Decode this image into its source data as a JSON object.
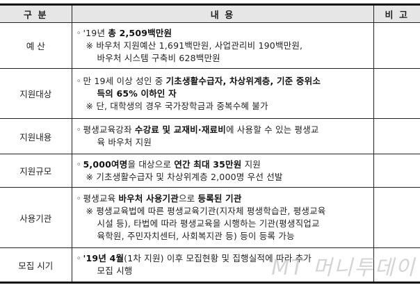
{
  "header": {
    "category": "구 분",
    "content": "내 용",
    "remark": "비 고"
  },
  "rows": [
    {
      "category": "예 산",
      "lines": [
        {
          "indent": 0,
          "bullet": "◦",
          "segs": [
            {
              "t": "'19년 ",
              "b": false
            },
            {
              "t": "총 2,509백만원",
              "b": true
            }
          ]
        },
        {
          "indent": 1,
          "segs": [
            {
              "t": "※ 바우처 지원예산 1,691백만원, 사업관리비 190백만원,",
              "b": false
            }
          ]
        },
        {
          "indent": 2,
          "segs": [
            {
              "t": "바우처 시스템 구축비 628백만원",
              "b": false
            }
          ]
        }
      ],
      "remark": ""
    },
    {
      "category": "지원대상",
      "lines": [
        {
          "indent": 0,
          "bullet": "◦",
          "segs": [
            {
              "t": "만 19세 이상 성인 중 ",
              "b": false
            },
            {
              "t": "기초생활수급자, 차상위계층, 기준 중위소",
              "b": true
            }
          ]
        },
        {
          "indent": 2,
          "segs": [
            {
              "t": "득의 65% 이하인 자",
              "b": true
            }
          ]
        },
        {
          "indent": 1,
          "segs": [
            {
              "t": "※ 단, 대학생의 경우 국가장학금과 중복수혜 불가",
              "b": false
            }
          ]
        }
      ],
      "remark": ""
    },
    {
      "category": "지원내용",
      "lines": [
        {
          "indent": 0,
          "bullet": "◦",
          "segs": [
            {
              "t": "평생교육강좌 ",
              "b": false
            },
            {
              "t": "수강료 및 교재비·재료비",
              "b": true
            },
            {
              "t": "에 사용할 수 있는 평생교",
              "b": false
            }
          ]
        },
        {
          "indent": 2,
          "segs": [
            {
              "t": "육 바우처 지원",
              "b": false
            }
          ]
        }
      ],
      "remark": ""
    },
    {
      "category": "지원규모",
      "lines": [
        {
          "indent": 0,
          "bullet": "◦",
          "segs": [
            {
              "t": "5,000여명",
              "b": true
            },
            {
              "t": "을 대상으로 ",
              "b": false
            },
            {
              "t": "연간 최대 35만원",
              "b": true
            },
            {
              "t": " 지원",
              "b": false
            }
          ]
        },
        {
          "indent": 1,
          "segs": [
            {
              "t": "※ 기초생활수급자 및 차상위계층 2,000명 우선 선발",
              "b": false
            }
          ]
        }
      ],
      "remark": ""
    },
    {
      "category": "사용기관",
      "lines": [
        {
          "indent": 0,
          "bullet": "◦",
          "segs": [
            {
              "t": "평생교육 ",
              "b": false
            },
            {
              "t": "바우처 사용기관",
              "b": true
            },
            {
              "t": "으로 ",
              "b": false
            },
            {
              "t": "등록된 기관",
              "b": true
            }
          ]
        },
        {
          "indent": 1,
          "segs": [
            {
              "t": "※ 평생교육법에 따른 평생교육기관(지자체 평생학습관, 평생교육",
              "b": false
            }
          ]
        },
        {
          "indent": 2,
          "segs": [
            {
              "t": "시설 등), 타법에 따라 평생교육을 시행하는 기관(평생직업교",
              "b": false
            }
          ]
        },
        {
          "indent": 2,
          "segs": [
            {
              "t": "육학원, 주민자치센터, 사회복지관 등) 등이 등록 가능",
              "b": false
            }
          ]
        }
      ],
      "remark": ""
    },
    {
      "category": "모집 시기",
      "lines": [
        {
          "indent": 0,
          "bullet": "◦",
          "segs": [
            {
              "t": "'19년 4월",
              "b": true
            },
            {
              "t": "(1차 지원) 이후 모집현황 및 집행실적에 따라 추가",
              "b": false
            }
          ]
        },
        {
          "indent": 2,
          "segs": [
            {
              "t": "모집 시행",
              "b": false
            }
          ]
        }
      ],
      "remark": ""
    }
  ],
  "watermark": "MT 머니투데이"
}
